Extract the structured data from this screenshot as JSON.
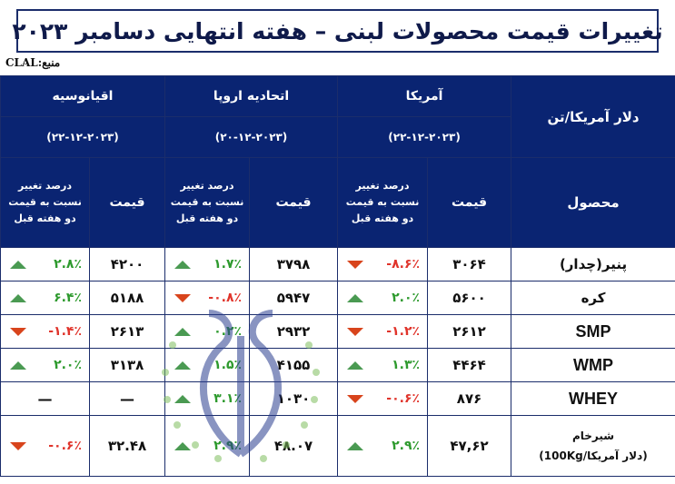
{
  "title": "تغییرات قیمت محصولات لبنی – هفته انتهایی دسامبر ۲۰۲۳",
  "source": "منبع:CLAL",
  "unit_header": "دلار آمریکا/تن",
  "product_header": "محصول",
  "regions": [
    {
      "name": "آمریکا",
      "date": "(۲۲-۱۲-۲۰۲۳)"
    },
    {
      "name": "اتحادیه اروپا",
      "date": "(۲۰-۱۲-۲۰۲۳)"
    },
    {
      "name": "اقیانوسیه",
      "date": "(۲۲-۱۲-۲۰۲۳)"
    }
  ],
  "price_header": "قیمت",
  "pct_header": [
    "درصد تغییر",
    "نسبت به قیمت",
    "دو هفته قبل"
  ],
  "rows": [
    {
      "product": "پنیر(چدار)",
      "us": {
        "price": "۳۰۶۴",
        "pct": "-۸.۶٪",
        "dir": "down"
      },
      "eu": {
        "price": "۳۷۹۸",
        "pct": "۱.۷٪",
        "dir": "up"
      },
      "oc": {
        "price": "۴۲۰۰",
        "pct": "۲.۸٪",
        "dir": "up"
      }
    },
    {
      "product": "کره",
      "us": {
        "price": "۵۶۰۰",
        "pct": "۲.۰٪",
        "dir": "up"
      },
      "eu": {
        "price": "۵۹۴۷",
        "pct": "-۰.۸٪",
        "dir": "down"
      },
      "oc": {
        "price": "۵۱۸۸",
        "pct": "۶.۴٪",
        "dir": "up"
      }
    },
    {
      "product": "SMP",
      "us": {
        "price": "۲۶۱۲",
        "pct": "-۱.۲٪",
        "dir": "down"
      },
      "eu": {
        "price": "۲۹۳۲",
        "pct": "۰.۲٪",
        "dir": "up"
      },
      "oc": {
        "price": "۲۶۱۳",
        "pct": "-۱.۴٪",
        "dir": "down"
      }
    },
    {
      "product": "WMP",
      "us": {
        "price": "۴۴۶۴",
        "pct": "۱.۳٪",
        "dir": "up"
      },
      "eu": {
        "price": "۴۱۵۵",
        "pct": "۱.۵٪",
        "dir": "up"
      },
      "oc": {
        "price": "۳۱۳۸",
        "pct": "۲.۰٪",
        "dir": "up"
      }
    },
    {
      "product": "WHEY",
      "us": {
        "price": "۸۷۶",
        "pct": "-۰.۶٪",
        "dir": "down"
      },
      "eu": {
        "price": "۱۰۳۰",
        "pct": "۳.۱٪",
        "dir": "up"
      },
      "oc": {
        "price": "—",
        "pct": "—",
        "dir": "none"
      }
    },
    {
      "product_lines": [
        "شیرخام",
        "(دلار آمریکا/100Kg)"
      ],
      "us": {
        "price": "۴۷,۶۲",
        "pct": "۲.۹٪",
        "dir": "up"
      },
      "eu": {
        "price": "۴۸.۰۷",
        "pct": "۲.۹٪",
        "dir": "up"
      },
      "oc": {
        "price": "۳۲.۴۸",
        "pct": "-۰.۶٪",
        "dir": "down"
      }
    }
  ],
  "colors": {
    "header_bg": "#0a2472",
    "border": "#1b2d6b",
    "up": "#2e9a2e",
    "down": "#e0342b",
    "tri_up": "#4a9a52",
    "tri_down": "#d8441c"
  },
  "icons": {
    "up": "triangle-up-icon",
    "down": "triangle-down-icon",
    "watermark": "logo-watermark"
  }
}
